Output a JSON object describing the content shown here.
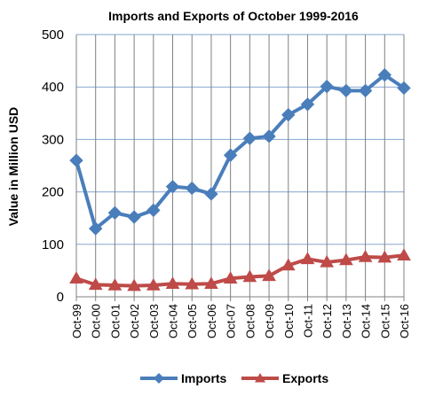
{
  "chart_data": {
    "type": "line",
    "title": "Imports and Exports of October 1999-2016",
    "ylabel": "Value in  Million  USD",
    "xlabel": "",
    "ylim": [
      0,
      500
    ],
    "yticks": [
      0,
      100,
      200,
      300,
      400,
      500
    ],
    "grid": true,
    "legend_position": "bottom",
    "categories": [
      "Oct-99",
      "Oct-00",
      "Oct-01",
      "Oct-02",
      "Oct-03",
      "Oct-04",
      "Oct-05",
      "Oct-06",
      "Oct-07",
      "Oct-08",
      "Oct-09",
      "Oct-10",
      "Oct-11",
      "Oct-12",
      "Oct-13",
      "Oct-14",
      "Oct-15",
      "Oct-16"
    ],
    "series": [
      {
        "name": "Imports",
        "color": "#4a7ebb",
        "marker": "diamond",
        "values": [
          260,
          130,
          160,
          152,
          165,
          210,
          207,
          196,
          270,
          302,
          306,
          347,
          367,
          401,
          393,
          393,
          423,
          398
        ]
      },
      {
        "name": "Exports",
        "color": "#be4b48",
        "marker": "triangle",
        "values": [
          35,
          23,
          22,
          21,
          22,
          25,
          24,
          25,
          35,
          38,
          40,
          60,
          72,
          66,
          70,
          76,
          75,
          79
        ]
      }
    ]
  }
}
